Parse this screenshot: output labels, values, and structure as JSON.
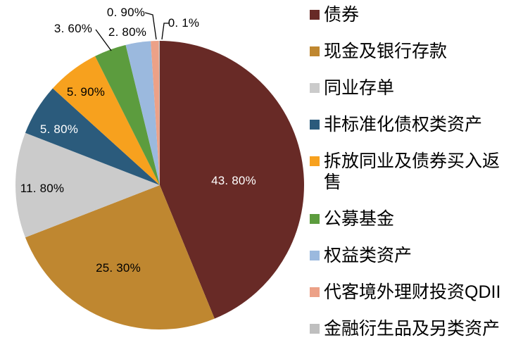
{
  "chart_data": {
    "type": "pie",
    "title": "",
    "start_angle_deg": 0,
    "direction": "clockwise",
    "legend_position": "right",
    "background_color": "#ffffff",
    "label_leader_line_color": "#000000",
    "slices": [
      {
        "label": "债券",
        "value": 43.8,
        "display": "43. 80%",
        "color": "#682A26",
        "label_placement": "inside",
        "label_color": "#ffffff"
      },
      {
        "label": "现金及银行存款",
        "value": 25.3,
        "display": "25. 30%",
        "color": "#BF8730",
        "label_placement": "inside",
        "label_color": "#000000"
      },
      {
        "label": "同业存单",
        "value": 11.8,
        "display": "11. 80%",
        "color": "#CBCBCB",
        "label_placement": "inside",
        "label_color": "#000000"
      },
      {
        "label": "非标准化债权类资产",
        "value": 5.8,
        "display": "5. 80%",
        "color": "#2B5B7C",
        "label_placement": "inside",
        "label_color": "#ffffff"
      },
      {
        "label": "拆放同业及债券买入返售",
        "value": 5.9,
        "display": "5. 90%",
        "color": "#F7A11E",
        "label_placement": "inside",
        "label_color": "#000000"
      },
      {
        "label": "公募基金",
        "value": 3.6,
        "display": "3. 60%",
        "color": "#5C9C3E",
        "label_placement": "outside",
        "label_color": "#000000"
      },
      {
        "label": "权益类资产",
        "value": 2.8,
        "display": "2. 80%",
        "color": "#9BB9DE",
        "label_placement": "outside",
        "label_color": "#000000"
      },
      {
        "label": "代客境外理财投资QDII",
        "value": 0.9,
        "display": "0. 90%",
        "color": "#ECA187",
        "label_placement": "outside",
        "label_color": "#000000"
      },
      {
        "label": "金融衍生品及另类资产",
        "value": 0.1,
        "display": "0. 1%",
        "color": "#BFBFBF",
        "label_placement": "outside",
        "label_color": "#000000"
      }
    ]
  }
}
